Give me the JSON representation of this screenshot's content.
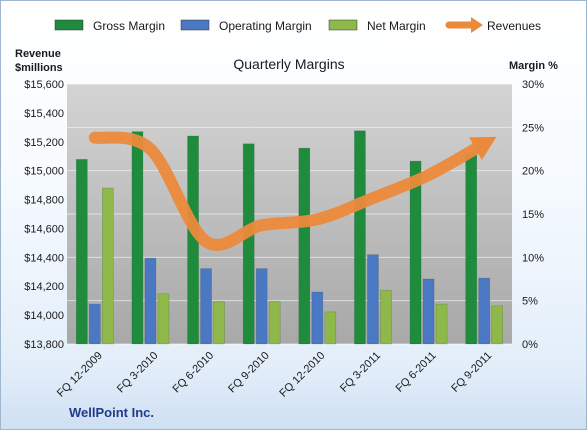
{
  "chart_data": {
    "type": "bar",
    "title": "Quarterly Margins",
    "footer": "WellPoint Inc.",
    "left_axis_title": [
      "Revenue",
      "$millions"
    ],
    "right_axis_title": "Margin %",
    "categories": [
      "FQ 12-2009",
      "FQ 3-2010",
      "FQ 6-2010",
      "FQ 9-2010",
      "FQ 12-2010",
      "FQ 3-2011",
      "FQ 6-2011",
      "FQ 9-2011"
    ],
    "left_axis": {
      "range": [
        13800,
        15600
      ],
      "ticks": [
        13800,
        14000,
        14200,
        14400,
        14600,
        14800,
        15000,
        15200,
        15400,
        15600
      ],
      "tick_labels": [
        "$13,800",
        "$14,000",
        "$14,200",
        "$14,400",
        "$14,600",
        "$14,800",
        "$15,000",
        "$15,200",
        "$15,400",
        "$15,600"
      ]
    },
    "right_axis": {
      "range": [
        0,
        30
      ],
      "ticks": [
        0,
        5,
        10,
        15,
        20,
        25,
        30
      ],
      "tick_labels": [
        "0%",
        "5%",
        "10%",
        "15%",
        "20%",
        "25%",
        "30%"
      ]
    },
    "grid": true,
    "legend_position": "top",
    "series": [
      {
        "name": "Gross Margin",
        "kind": "bar",
        "axis": "right",
        "color": "#1e8c3c",
        "values": [
          21.3,
          24.5,
          24.0,
          23.1,
          22.6,
          24.6,
          21.1,
          21.9
        ]
      },
      {
        "name": "Operating Margin",
        "kind": "bar",
        "axis": "right",
        "color": "#4a78c2",
        "values": [
          4.6,
          9.9,
          8.7,
          8.7,
          6.0,
          10.3,
          7.5,
          7.6
        ]
      },
      {
        "name": "Net Margin",
        "kind": "bar",
        "axis": "right",
        "color": "#8fb84a",
        "values": [
          18.0,
          5.8,
          4.9,
          4.9,
          3.7,
          6.2,
          4.6,
          4.4
        ]
      },
      {
        "name": "Revenues",
        "kind": "line",
        "axis": "left",
        "color": "#ec8a3c",
        "values": [
          15229,
          15149,
          14510,
          14622,
          14663,
          14810,
          14969,
          15186
        ]
      }
    ]
  }
}
